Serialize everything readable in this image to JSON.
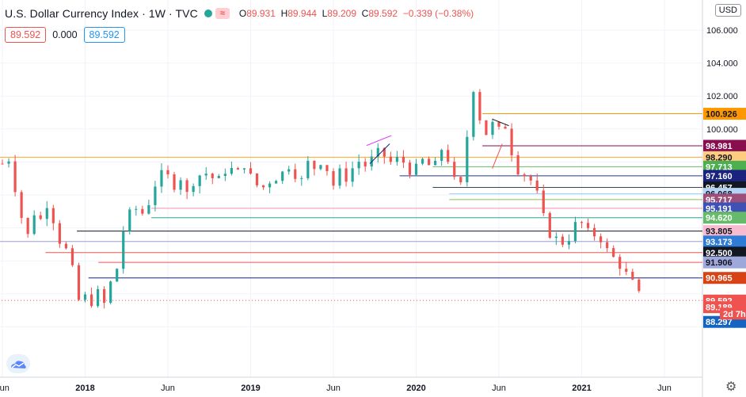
{
  "header": {
    "title": "U.S. Dollar Currency Index · 1W · TVC",
    "status_dot_color": "#26a69a",
    "market_icon": "≈",
    "ohlc": [
      {
        "k": "O",
        "v": "89.931"
      },
      {
        "k": "H",
        "v": "89.944"
      },
      {
        "k": "L",
        "v": "89.209"
      },
      {
        "k": "C",
        "v": "89.592"
      },
      {
        "k": "",
        "v": "−0.339 (−0.38%)"
      }
    ],
    "sell_price": "89.592",
    "spread": "0.000",
    "buy_price": "89.592",
    "currency": "USD"
  },
  "colors": {
    "up": "#26a69a",
    "down": "#ef5350",
    "grid": "#f0f3fa",
    "axis_text": "#131722"
  },
  "chart_data": {
    "type": "candlestick",
    "symbol": "U.S. Dollar Currency Index",
    "interval": "1W",
    "source": "TVC",
    "ylim": [
      88.0,
      107.0
    ],
    "y_ticks": [
      "106.000",
      "104.000",
      "102.000",
      "100.000"
    ],
    "x_ticks": [
      {
        "label": "Jun",
        "t": 0.0
      },
      {
        "label": "2018",
        "t": 0.5
      },
      {
        "label": "Jun",
        "t": 1.0
      },
      {
        "label": "2019",
        "t": 1.5
      },
      {
        "label": "Jun",
        "t": 2.0
      },
      {
        "label": "2020",
        "t": 2.5
      },
      {
        "label": "Jun",
        "t": 3.0
      },
      {
        "label": "2021",
        "t": 3.5
      },
      {
        "label": "Jun",
        "t": 4.0
      }
    ],
    "price_path": [
      [
        0.0,
        97.9
      ],
      [
        0.04,
        98.2
      ],
      [
        0.09,
        95.8
      ],
      [
        0.13,
        94.0
      ],
      [
        0.15,
        93.4
      ],
      [
        0.2,
        95.2
      ],
      [
        0.24,
        94.3
      ],
      [
        0.27,
        95.5
      ],
      [
        0.3,
        94.8
      ],
      [
        0.34,
        93.3
      ],
      [
        0.38,
        92.8
      ],
      [
        0.42,
        91.6
      ],
      [
        0.46,
        89.6
      ],
      [
        0.5,
        89.8
      ],
      [
        0.54,
        89.5
      ],
      [
        0.58,
        90.1
      ],
      [
        0.62,
        89.3
      ],
      [
        0.66,
        90.9
      ],
      [
        0.7,
        91.7
      ],
      [
        0.74,
        94.5
      ],
      [
        0.8,
        95.2
      ],
      [
        0.86,
        94.8
      ],
      [
        0.92,
        96.6
      ],
      [
        0.98,
        97.5
      ],
      [
        1.03,
        96.5
      ],
      [
        1.08,
        97.1
      ],
      [
        1.12,
        95.9
      ],
      [
        1.16,
        97.0
      ],
      [
        1.22,
        97.4
      ],
      [
        1.3,
        96.8
      ],
      [
        1.36,
        97.7
      ],
      [
        1.42,
        97.3
      ],
      [
        1.46,
        97.9
      ],
      [
        1.5,
        97.1
      ],
      [
        1.56,
        96.3
      ],
      [
        1.62,
        96.9
      ],
      [
        1.68,
        97.2
      ],
      [
        1.74,
        97.9
      ],
      [
        1.8,
        96.6
      ],
      [
        1.84,
        98.0
      ],
      [
        1.88,
        97.6
      ],
      [
        1.92,
        98.1
      ],
      [
        1.96,
        97.6
      ],
      [
        2.0,
        96.6
      ],
      [
        2.04,
        97.4
      ],
      [
        2.08,
        97.0
      ],
      [
        2.12,
        97.7
      ],
      [
        2.16,
        98.1
      ],
      [
        2.2,
        97.7
      ],
      [
        2.26,
        98.6
      ],
      [
        2.32,
        98.3
      ],
      [
        2.36,
        97.8
      ],
      [
        2.4,
        98.4
      ],
      [
        2.44,
        97.7
      ],
      [
        2.48,
        97.3
      ],
      [
        2.52,
        97.9
      ],
      [
        2.56,
        98.3
      ],
      [
        2.6,
        97.1
      ],
      [
        2.64,
        98.9
      ],
      [
        2.68,
        98.6
      ],
      [
        2.72,
        97.2
      ],
      [
        2.76,
        95.9
      ],
      [
        2.8,
        98.8
      ],
      [
        2.84,
        102.8
      ],
      [
        2.88,
        100.8
      ],
      [
        2.92,
        99.7
      ],
      [
        2.96,
        100.3
      ],
      [
        3.0,
        99.9
      ],
      [
        3.04,
        100.2
      ],
      [
        3.08,
        98.5
      ],
      [
        3.12,
        97.4
      ],
      [
        3.16,
        97.2
      ],
      [
        3.2,
        96.8
      ],
      [
        3.24,
        95.8
      ],
      [
        3.28,
        94.2
      ],
      [
        3.32,
        93.4
      ],
      [
        3.36,
        93.3
      ],
      [
        3.4,
        93.0
      ],
      [
        3.44,
        93.7
      ],
      [
        3.48,
        94.6
      ],
      [
        3.52,
        93.9
      ],
      [
        3.56,
        93.5
      ],
      [
        3.6,
        93.7
      ],
      [
        3.64,
        92.8
      ],
      [
        3.68,
        92.3
      ],
      [
        3.72,
        91.9
      ],
      [
        3.76,
        91.3
      ],
      [
        3.8,
        90.8
      ],
      [
        3.84,
        90.0
      ],
      [
        3.88,
        89.6
      ]
    ],
    "levels": [
      {
        "value": 100.926,
        "label": "100.926",
        "bg": "#ff9800",
        "fg": "#131722",
        "line": "#ff9800",
        "start": 2.9
      },
      {
        "value": 98.981,
        "label": "98.981",
        "bg": "#880e4f",
        "fg": "#ffffff",
        "line": "#880e4f",
        "start": 2.9
      },
      {
        "value": 98.29,
        "label": "98.290",
        "bg": "#ffcc80",
        "fg": "#131722",
        "line": "#ffa726",
        "start": -0.1
      },
      {
        "value": 97.713,
        "label": "97.713",
        "bg": "#4caf50",
        "fg": "#ffffff",
        "line": "#66bb6a",
        "start": 2.6
      },
      {
        "value": 97.16,
        "label": "97.160",
        "bg": "#1a237e",
        "fg": "#ffffff",
        "line": "#283593",
        "start": 2.4
      },
      {
        "value": 96.457,
        "label": "96.457",
        "bg": "#131722",
        "fg": "#ffffff",
        "line": "#37474f",
        "start": 2.6
      },
      {
        "value": 96.068,
        "label": "96.068",
        "bg": "#b3d4f5",
        "fg": "#131722",
        "line": "#90caf9",
        "start": 2.7
      },
      {
        "value": 95.717,
        "label": "95.717",
        "bg": "#9c4f7a",
        "fg": "#ffffff",
        "line": "#8bc34a",
        "start": 2.7
      },
      {
        "value": 95.191,
        "label": "95.191",
        "bg": "#3f51b5",
        "fg": "#ffffff",
        "line": "#f48fb1",
        "start": 0.9
      },
      {
        "value": 94.62,
        "label": "94.620",
        "bg": "#66bb6a",
        "fg": "#ffffff",
        "line": "#26a69a",
        "start": 0.9
      },
      {
        "value": 93.805,
        "label": "93.805",
        "bg": "#f8bbd0",
        "fg": "#131722",
        "line": "#131722",
        "start": 0.45
      },
      {
        "value": 93.173,
        "label": "93.173",
        "bg": "#2e7cd6",
        "fg": "#ffffff",
        "line": "#9e9ed0",
        "start": -0.1
      },
      {
        "value": 92.5,
        "label": "92.500",
        "bg": "#131722",
        "fg": "#ffffff",
        "line": "#ef5350",
        "start": 0.26
      },
      {
        "value": 91.906,
        "label": "91.906",
        "bg": "#9fa8da",
        "fg": "#131722",
        "line": "#ef5350",
        "start": 0.58
      },
      {
        "value": 90.965,
        "label": "90.965",
        "bg": "#d84315",
        "fg": "#ffffff",
        "line": "#1a237e",
        "start": 0.52
      },
      {
        "value": 89.592,
        "label": "89.592",
        "bg": "#ef5350",
        "fg": "#ffffff",
        "line": "#ef5350",
        "start": -0.1
      },
      {
        "value": 89.189,
        "label": "89.189",
        "bg": "#ef5350",
        "fg": "#ffffff",
        "line": "none",
        "start": 4.5
      },
      {
        "value": 88.297,
        "label": "88.297",
        "bg": "#1565c0",
        "fg": "#ffffff",
        "line": "none",
        "start": 4.5
      }
    ],
    "countdown": {
      "label": "2d 7h",
      "y": 88.8,
      "bg": "#ef5350",
      "fg": "#ffffff"
    }
  }
}
